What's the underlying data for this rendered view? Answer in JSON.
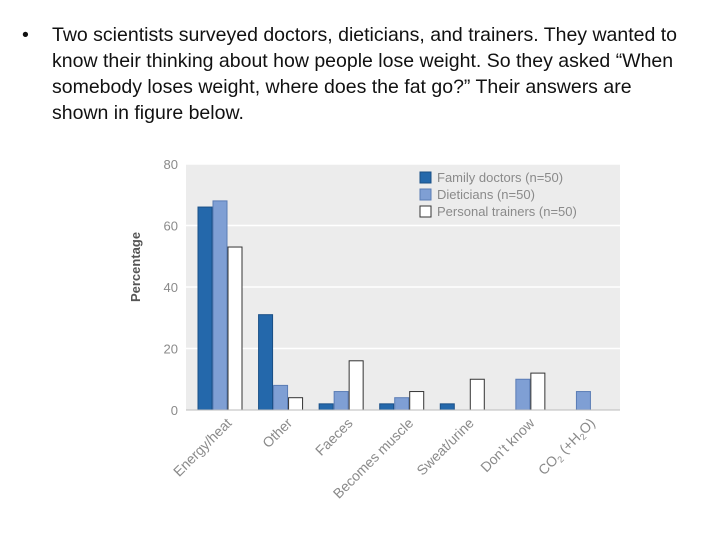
{
  "slide": {
    "bullet": "•",
    "text": "Two scientists surveyed doctors, dieticians, and trainers. They wanted to know their thinking about how people lose weight. So they asked “When somebody loses weight, where does the fat go?” Their answers are shown in figure below."
  },
  "colors": {
    "family_doctors": "#2468ab",
    "dieticians": "#7f9fd4",
    "personal_trainers": "#ffffff",
    "plot_background": "#ececec",
    "grid": "#ffffff",
    "axis_text": "#8a8a8a"
  },
  "chart_data": {
    "type": "bar",
    "title": "",
    "xlabel": "",
    "ylabel": "Percentage",
    "ylim": [
      0,
      80
    ],
    "yticks": [
      0,
      20,
      40,
      60,
      80
    ],
    "grid": true,
    "legend_position": "top-right",
    "categories": [
      "Energy/heat",
      "Other",
      "Faeces",
      "Becomes muscle",
      "Sweat/urine",
      "Don’t know",
      "CO2 (+H2O)"
    ],
    "series": [
      {
        "name": "Family doctors (n=50)",
        "values": [
          66,
          31,
          2,
          2,
          2,
          0,
          0
        ]
      },
      {
        "name": "Dieticians (n=50)",
        "values": [
          68,
          8,
          6,
          4,
          0,
          10,
          6
        ]
      },
      {
        "name": "Personal trainers (n=50)",
        "values": [
          53,
          4,
          16,
          6,
          10,
          12,
          0
        ]
      }
    ]
  }
}
